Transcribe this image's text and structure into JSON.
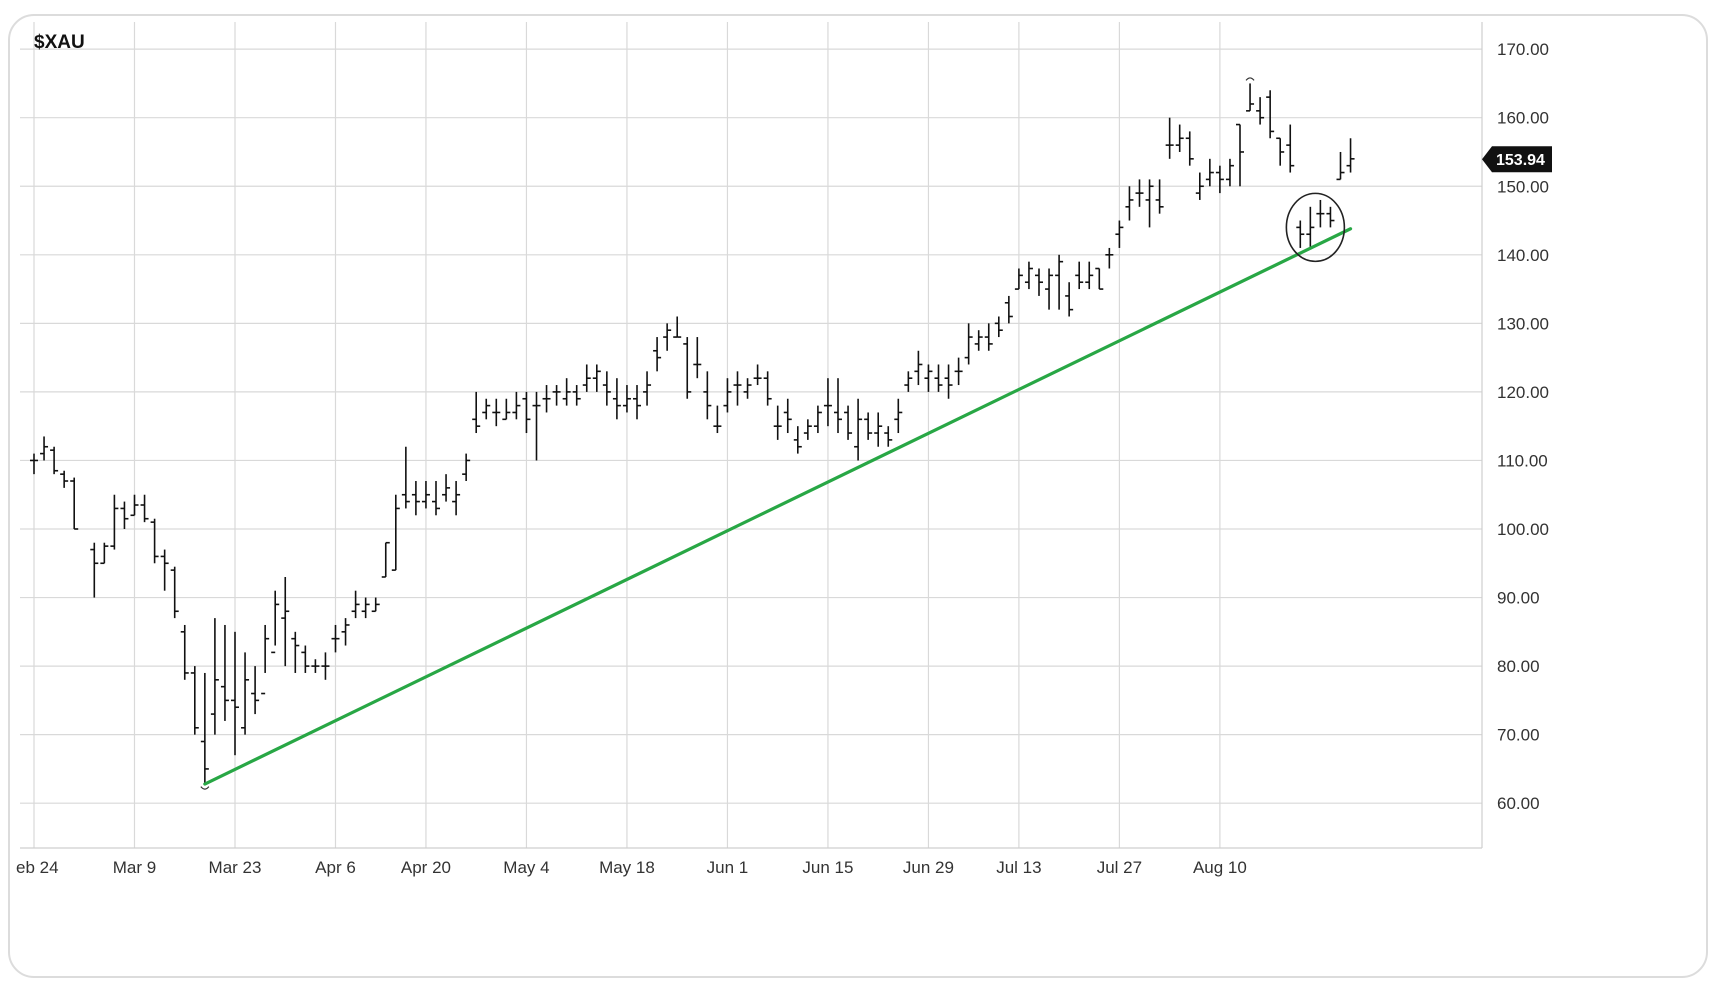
{
  "chart_data": {
    "type": "ohlc",
    "title": "$XAU",
    "xlabel": "",
    "ylabel": "",
    "ylim": [
      55,
      172
    ],
    "y_ticks": [
      "170.00",
      "160.00",
      "150.00",
      "140.00",
      "130.00",
      "120.00",
      "110.00",
      "100.00",
      "90.00",
      "80.00",
      "70.00",
      "60.00"
    ],
    "x_ticks": [
      "eb 24",
      "Mar 9",
      "Mar 23",
      "Apr 6",
      "Apr 20",
      "May 4",
      "May 18",
      "Jun 1",
      "Jun 15",
      "Jun 29",
      "Jul 13",
      "Jul 27",
      "Aug 10"
    ],
    "grid": true,
    "last_price": "153.94",
    "last_price_color": "#111111",
    "bar_color": "#111111",
    "series": [
      {
        "values": [
          [
            0,
            110,
            111,
            108,
            110
          ],
          [
            1,
            111,
            113.5,
            110,
            112
          ],
          [
            2,
            111.5,
            112,
            108,
            108.5
          ],
          [
            3,
            108,
            108.5,
            106,
            107
          ],
          [
            4,
            107,
            107.5,
            100,
            100
          ],
          [
            6,
            97,
            98,
            90,
            95
          ],
          [
            7,
            95,
            98,
            95,
            97.5
          ],
          [
            8,
            97.5,
            105,
            97,
            103
          ],
          [
            9,
            103,
            104,
            100,
            101.5
          ],
          [
            10,
            102,
            105,
            102,
            103.5
          ],
          [
            11,
            103.5,
            105,
            101,
            101.5
          ],
          [
            12,
            101,
            101.5,
            95,
            96
          ],
          [
            13,
            96,
            97,
            91,
            95
          ],
          [
            14,
            94,
            94.5,
            87,
            88
          ],
          [
            15,
            85,
            86,
            78,
            79
          ],
          [
            16,
            79,
            80,
            70,
            71
          ],
          [
            17,
            69,
            79,
            63,
            65
          ],
          [
            18,
            73,
            87,
            70,
            78
          ],
          [
            19,
            77,
            86,
            72,
            75
          ],
          [
            20,
            75,
            85,
            67,
            74
          ],
          [
            21,
            71,
            82,
            70,
            78
          ],
          [
            22,
            76,
            80,
            73,
            75
          ],
          [
            23,
            76,
            86,
            79,
            84
          ],
          [
            24,
            82,
            91,
            83,
            89
          ],
          [
            25,
            87,
            93,
            80,
            88
          ],
          [
            26,
            84,
            85,
            79,
            83
          ],
          [
            27,
            82,
            83,
            79,
            80
          ],
          [
            28,
            80,
            81,
            79,
            80
          ],
          [
            29,
            80,
            82,
            78,
            80
          ],
          [
            30,
            84,
            86,
            82,
            84
          ],
          [
            31,
            85,
            87,
            83,
            86
          ],
          [
            32,
            88,
            91,
            87,
            89
          ],
          [
            33,
            88,
            90,
            87,
            89
          ],
          [
            34,
            88,
            90,
            88,
            89
          ],
          [
            35,
            93,
            98,
            93,
            98
          ],
          [
            36,
            94,
            105,
            94,
            103
          ],
          [
            37,
            105,
            112,
            103,
            104
          ],
          [
            38,
            105,
            107,
            102,
            104
          ],
          [
            39,
            104,
            107,
            103,
            105
          ],
          [
            40,
            104,
            107,
            102,
            103
          ],
          [
            41,
            105,
            108,
            104,
            106
          ],
          [
            42,
            104,
            107,
            102,
            105
          ],
          [
            43,
            108,
            111,
            107,
            110
          ],
          [
            44,
            116,
            120,
            114,
            115
          ],
          [
            45,
            117,
            119,
            116,
            118
          ],
          [
            46,
            117,
            119,
            115,
            117
          ],
          [
            47,
            116,
            119,
            116,
            117
          ],
          [
            48,
            117,
            120,
            116,
            118
          ],
          [
            49,
            119,
            120,
            114,
            116
          ],
          [
            50,
            118,
            120,
            110,
            118
          ],
          [
            51,
            119,
            121,
            117,
            119
          ],
          [
            52,
            120,
            121,
            118,
            120
          ],
          [
            53,
            119,
            122,
            118,
            120
          ],
          [
            54,
            120,
            121,
            118,
            119
          ],
          [
            55,
            121,
            124,
            120,
            122
          ],
          [
            56,
            122,
            124,
            120,
            123
          ],
          [
            57,
            121,
            123,
            118,
            120
          ],
          [
            58,
            119,
            122,
            116,
            118
          ],
          [
            59,
            118,
            121,
            117,
            119
          ],
          [
            60,
            119,
            121,
            116,
            118
          ],
          [
            61,
            120,
            123,
            118,
            121
          ],
          [
            62,
            126,
            128,
            123,
            125
          ],
          [
            63,
            128,
            130,
            126,
            129
          ],
          [
            64,
            128,
            131,
            128,
            128
          ],
          [
            65,
            127,
            128,
            119,
            120
          ],
          [
            66,
            124,
            128,
            122,
            124
          ],
          [
            67,
            120,
            123,
            116,
            118
          ],
          [
            68,
            115,
            118,
            114,
            115
          ],
          [
            69,
            118,
            122,
            117,
            120
          ],
          [
            70,
            121,
            123,
            118,
            121
          ],
          [
            71,
            120,
            122,
            119,
            121
          ],
          [
            72,
            122,
            124,
            121,
            122
          ],
          [
            73,
            122,
            123,
            118,
            119
          ],
          [
            74,
            115,
            118,
            113,
            115
          ],
          [
            75,
            117,
            119,
            114,
            116
          ],
          [
            76,
            113,
            115,
            111,
            112
          ],
          [
            77,
            114,
            116,
            113,
            115
          ],
          [
            78,
            115,
            118,
            114,
            117
          ],
          [
            79,
            118,
            122,
            115,
            118
          ],
          [
            80,
            117,
            122,
            114,
            116
          ],
          [
            81,
            117,
            118,
            113,
            114
          ],
          [
            82,
            112,
            119,
            110,
            116
          ],
          [
            83,
            116,
            117,
            113,
            114
          ],
          [
            84,
            114,
            117,
            112,
            115
          ],
          [
            85,
            114,
            115,
            112,
            113
          ],
          [
            86,
            116,
            119,
            114,
            117
          ],
          [
            87,
            121,
            123,
            120,
            122
          ],
          [
            88,
            123,
            126,
            121,
            124
          ],
          [
            89,
            122,
            124,
            120,
            123
          ],
          [
            90,
            122,
            124,
            120,
            121
          ],
          [
            91,
            122,
            124,
            119,
            121
          ],
          [
            92,
            123,
            125,
            121,
            123
          ],
          [
            93,
            125,
            130,
            124,
            128
          ],
          [
            94,
            127,
            129,
            126,
            128
          ],
          [
            95,
            128,
            130,
            126,
            127
          ],
          [
            96,
            130,
            131,
            128,
            129
          ],
          [
            97,
            133,
            134,
            130,
            131
          ],
          [
            98,
            135,
            138,
            135,
            137
          ],
          [
            99,
            136,
            139,
            135,
            138
          ],
          [
            100,
            137,
            138,
            134,
            136
          ],
          [
            101,
            135,
            138,
            132,
            137
          ],
          [
            102,
            137,
            140,
            132,
            139
          ],
          [
            103,
            134,
            136,
            131,
            132
          ],
          [
            104,
            137,
            139,
            135,
            136
          ],
          [
            105,
            136,
            139,
            135,
            137
          ],
          [
            106,
            138,
            138,
            135,
            135
          ],
          [
            107,
            140,
            141,
            138,
            140
          ],
          [
            108,
            143,
            145,
            141,
            144
          ],
          [
            109,
            147,
            150,
            145,
            148
          ],
          [
            110,
            149,
            151,
            147,
            149
          ],
          [
            111,
            148,
            151,
            144,
            150
          ],
          [
            112,
            148,
            151,
            146,
            147
          ],
          [
            113,
            156,
            160,
            154,
            156
          ],
          [
            114,
            156,
            159,
            155,
            157
          ],
          [
            115,
            157,
            158,
            153,
            154
          ],
          [
            116,
            149,
            152,
            148,
            150
          ],
          [
            117,
            151,
            154,
            150,
            152
          ],
          [
            118,
            152,
            153,
            149,
            151
          ],
          [
            119,
            151,
            154,
            150,
            153
          ],
          [
            120,
            159,
            159,
            150,
            155
          ],
          [
            121,
            161,
            165,
            161,
            162
          ],
          [
            122,
            161,
            163,
            159,
            160
          ],
          [
            123,
            163,
            164,
            157,
            158
          ],
          [
            124,
            157,
            157,
            153,
            155
          ],
          [
            125,
            156,
            159,
            152,
            153
          ],
          [
            126,
            144,
            145,
            141,
            143
          ],
          [
            127,
            143,
            147,
            141,
            144
          ],
          [
            128,
            146,
            148,
            144,
            146
          ],
          [
            129,
            146,
            147,
            144,
            145
          ],
          [
            130,
            151,
            155,
            151,
            152
          ],
          [
            131,
            153,
            157,
            152,
            154
          ]
        ]
      }
    ],
    "annotations": [
      {
        "kind": "trendline",
        "color": "#28a745",
        "from": [
          17,
          62.8
        ],
        "to": [
          131,
          143.8
        ]
      },
      {
        "kind": "circle",
        "center": [
          127.5,
          144
        ],
        "radius": 5
      }
    ]
  }
}
